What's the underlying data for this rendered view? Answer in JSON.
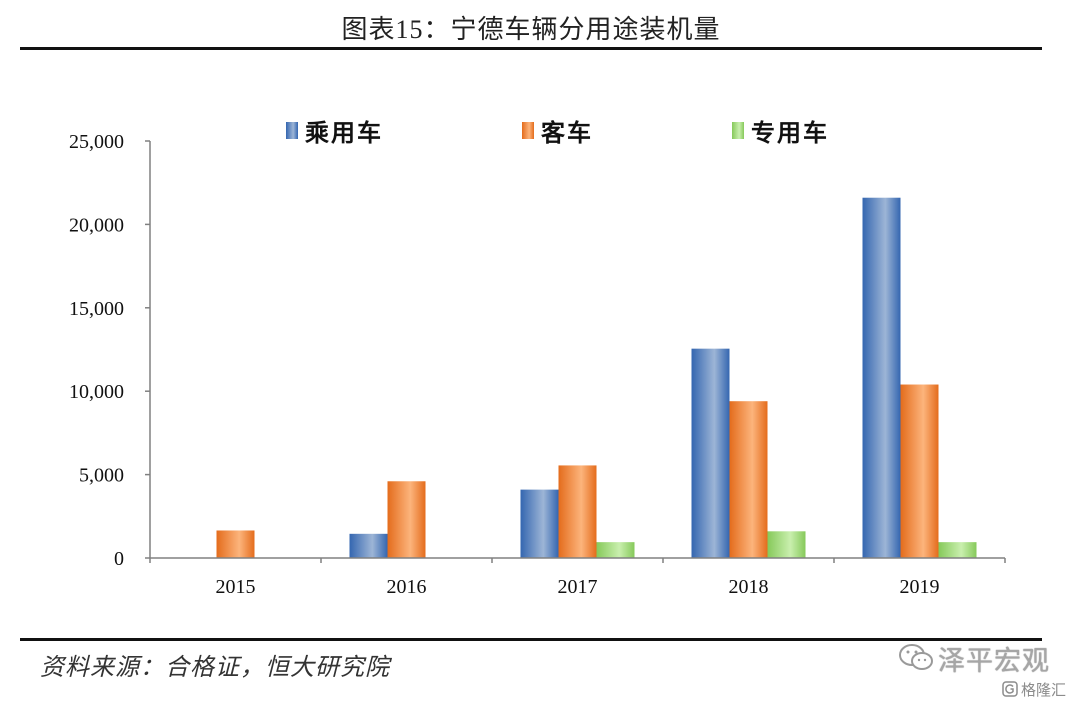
{
  "chart_data": {
    "type": "bar",
    "title": "图表15：宁德车辆分用途装机量",
    "categories": [
      "2015",
      "2016",
      "2017",
      "2018",
      "2019"
    ],
    "series": [
      {
        "name": "乘用车",
        "color": "#3466b0",
        "highlight": "#9db5d6",
        "values": [
          0,
          1450,
          4100,
          12550,
          21600
        ]
      },
      {
        "name": "客车",
        "color": "#e46c1c",
        "highlight": "#fcb47c",
        "values": [
          1650,
          4600,
          5550,
          9400,
          10400
        ]
      },
      {
        "name": "专用车",
        "color": "#86c95a",
        "highlight": "#c9efae",
        "values": [
          0,
          0,
          950,
          1600,
          950
        ]
      }
    ],
    "xlabel": "",
    "ylabel": "",
    "ylim": [
      0,
      25000
    ],
    "yticks": [
      0,
      5000,
      10000,
      15000,
      20000,
      25000
    ],
    "ytick_labels": [
      "0",
      "5,000",
      "10,000",
      "15,000",
      "20,000",
      "25,000"
    ],
    "grid": false,
    "legend_position": "top",
    "axis_color": "#808080"
  },
  "footer": {
    "source": "资料来源：合格证，恒大研究院"
  },
  "watermarks": {
    "primary_text": "泽平宏观",
    "primary_icon": "wechat-icon",
    "secondary_text": "格隆汇",
    "secondary_icon": "gelonghui-logo-icon"
  }
}
